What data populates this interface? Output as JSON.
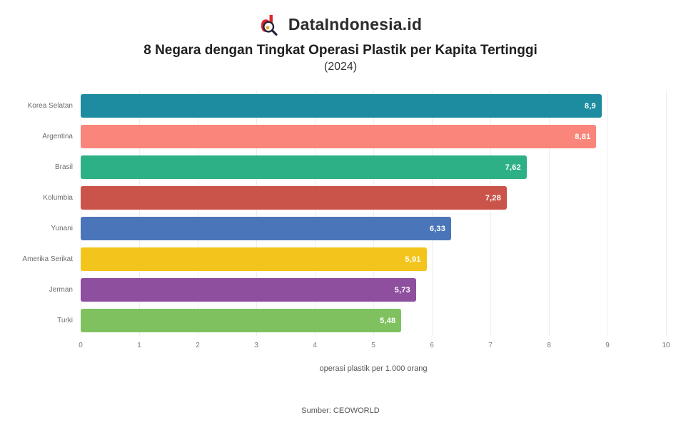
{
  "brand": {
    "logo": "dataindonesia-logo-icon",
    "name": "DataIndonesia.id",
    "logo_color": "#e0262c"
  },
  "title": "8 Negara dengan Tingkat Operasi Plastik per Kapita Tertinggi",
  "subtitle": "(2024)",
  "chart_data": {
    "type": "bar",
    "orientation": "horizontal",
    "categories": [
      "Korea Selatan",
      "Argentina",
      "Brasil",
      "Kolumbia",
      "Yunani",
      "Amerika Serikat",
      "Jerman",
      "Turki"
    ],
    "values": [
      8.9,
      8.81,
      7.62,
      7.28,
      6.33,
      5.91,
      5.73,
      5.48
    ],
    "value_labels": [
      "8,9",
      "8,81",
      "7,62",
      "7,28",
      "6,33",
      "5,91",
      "5,73",
      "5,48"
    ],
    "bar_colors": [
      "#1e8ca0",
      "#f9857b",
      "#2eb086",
      "#cb544a",
      "#4a76b9",
      "#f3c51c",
      "#8e4f9f",
      "#7fc15e"
    ],
    "xlabel": "operasi plastik per 1.000 orang",
    "xlim": [
      0,
      10
    ],
    "x_ticks": [
      "0",
      "1",
      "2",
      "3",
      "4",
      "5",
      "6",
      "7",
      "8",
      "9",
      "10"
    ],
    "grid": "vertical-light",
    "legend": "none"
  },
  "footer": {
    "source": "Sumber: CEOWORLD"
  }
}
